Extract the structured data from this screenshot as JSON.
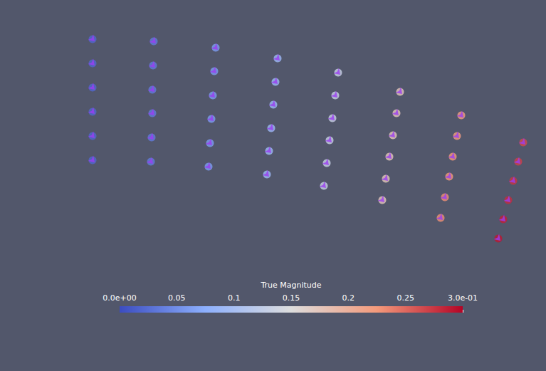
{
  "chart_data": {
    "type": "scatter",
    "tick_labels": false,
    "marker": "arrow",
    "color": "#9b3df2",
    "xlim": [
      0,
      767
    ],
    "ylim": [
      521,
      0
    ],
    "x": [
      130,
      130,
      130,
      130,
      130,
      130,
      216,
      215,
      214,
      214,
      213,
      212,
      303,
      301,
      299,
      297,
      295,
      293,
      390,
      387,
      384,
      381,
      378,
      375,
      475,
      471,
      467,
      463,
      459,
      455,
      562,
      557,
      552,
      547,
      542,
      537,
      648,
      642,
      636,
      631,
      625,
      619,
      735,
      728,
      721,
      714,
      707,
      700
    ],
    "y": [
      55,
      89,
      123,
      157,
      191,
      225,
      58,
      92,
      126,
      159,
      193,
      227,
      67,
      100,
      134,
      167,
      201,
      234,
      82,
      115,
      147,
      180,
      212,
      245,
      102,
      134,
      166,
      197,
      229,
      261,
      129,
      159,
      190,
      220,
      251,
      281,
      162,
      191,
      220,
      248,
      277,
      306,
      200,
      227,
      254,
      281,
      308,
      335
    ],
    "values": [
      0.02,
      0.02,
      0.02,
      0.02,
      0.02,
      0.02,
      0.035,
      0.035,
      0.035,
      0.035,
      0.035,
      0.035,
      0.06,
      0.06,
      0.06,
      0.06,
      0.06,
      0.06,
      0.09,
      0.09,
      0.09,
      0.09,
      0.09,
      0.09,
      0.13,
      0.13,
      0.13,
      0.13,
      0.13,
      0.13,
      0.175,
      0.175,
      0.175,
      0.175,
      0.175,
      0.175,
      0.22,
      0.22,
      0.225,
      0.225,
      0.23,
      0.23,
      0.265,
      0.27,
      0.275,
      0.28,
      0.285,
      0.29
    ],
    "colorbar": {
      "title": "True Magnitude",
      "range": [
        0,
        0.3
      ],
      "ticks": [
        {
          "value": 0,
          "label": "0.0e+00"
        },
        0.05,
        0.1,
        0.15,
        0.2,
        0.25,
        {
          "value": 0.3,
          "label": "3.0e-01"
        }
      ],
      "colors": [
        "#3b4cc0",
        "#8db0fe",
        "#dddddd",
        "#f49a7b",
        "#b40426"
      ]
    }
  }
}
